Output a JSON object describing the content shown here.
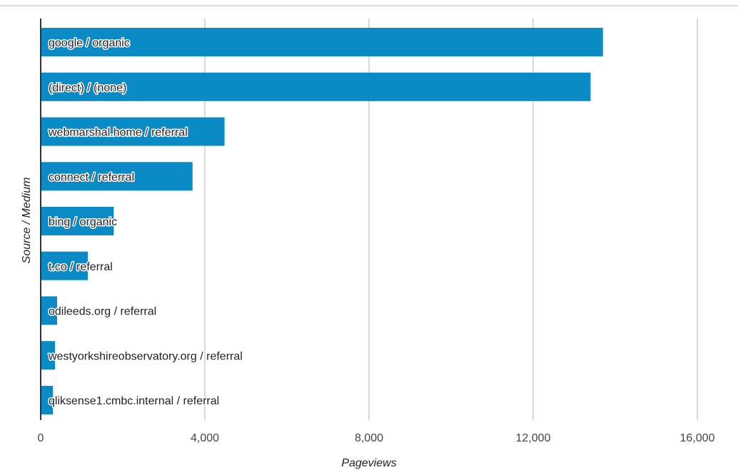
{
  "chart_data": {
    "type": "bar",
    "orientation": "horizontal",
    "xlabel": "Pageviews",
    "ylabel": "Source / Medium",
    "xlim": [
      0,
      16000
    ],
    "x_ticks": [
      0,
      4000,
      8000,
      12000,
      16000
    ],
    "x_tick_labels": [
      "0",
      "4,000",
      "8,000",
      "12,000",
      "16,000"
    ],
    "grid": true,
    "categories": [
      "google / organic",
      "(direct) / (none)",
      "webmarshal.home / referral",
      "connect / referral",
      "bing / organic",
      "t.co / referral",
      "odileeds.org / referral",
      "westyorkshireobservatory.org / referral",
      "qliksense1.cmbc.internal / referral"
    ],
    "values": [
      13700,
      13400,
      4480,
      3700,
      1780,
      1150,
      400,
      350,
      300
    ],
    "colors": {
      "bar": "#0a8bc5",
      "grid": "#cccccc",
      "axis": "#333333",
      "label_halo": "#ffffff"
    }
  }
}
